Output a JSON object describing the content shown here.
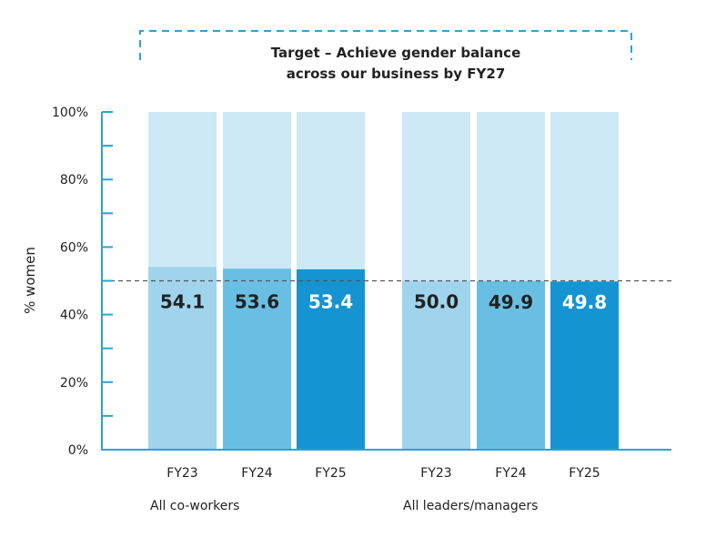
{
  "chart_data": {
    "type": "bar",
    "title": "",
    "annotation": [
      "Target – Achieve gender balance",
      "across our business by FY27"
    ],
    "ylabel": "% women",
    "ylim": [
      0,
      100
    ],
    "yticks": [
      "0%",
      "20%",
      "40%",
      "60%",
      "80%",
      "100%"
    ],
    "target_line": 50,
    "groups": [
      {
        "name": "All co-workers",
        "categories": [
          "FY23",
          "FY24",
          "FY25"
        ],
        "values": [
          54.1,
          53.6,
          53.4
        ],
        "labels": [
          "54.1",
          "53.6",
          "53.4"
        ]
      },
      {
        "name": "All leaders/managers",
        "categories": [
          "FY23",
          "FY24",
          "FY25"
        ],
        "values": [
          50.0,
          49.9,
          49.8
        ],
        "labels": [
          "50.0",
          "49.9",
          "49.8"
        ]
      }
    ],
    "colors": {
      "background_bar": "#cde9f5",
      "FY23": "#9fd4ec",
      "FY24": "#69bfe3",
      "FY25": "#1594d2",
      "axis": "#2aa3d7",
      "target_line": "#555555",
      "bracket": "#2aa3d7"
    },
    "grid": false
  }
}
